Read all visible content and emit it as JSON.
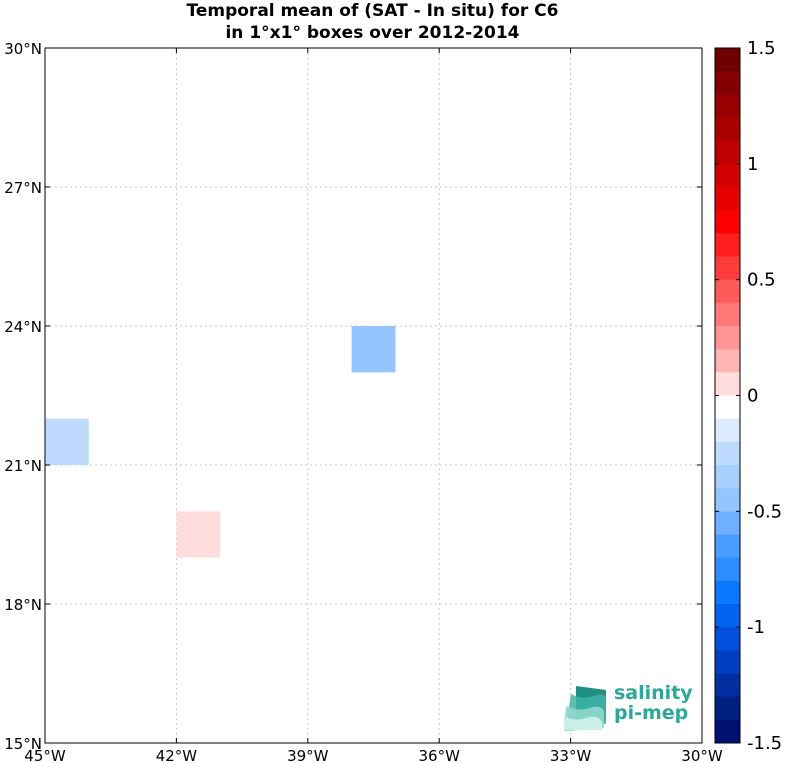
{
  "title": {
    "line1": "Temporal mean of (SAT - In situ) for C6",
    "line2": "in 1°x1° boxes over 2012-2014"
  },
  "chart_data": {
    "type": "heatmap",
    "projection": "lon-lat",
    "xlim": [
      -45,
      -30
    ],
    "ylim": [
      15,
      30
    ],
    "grid": true,
    "x_ticks": [
      {
        "value": -45,
        "label": "45°W"
      },
      {
        "value": -42,
        "label": "42°W"
      },
      {
        "value": -39,
        "label": "39°W"
      },
      {
        "value": -36,
        "label": "36°W"
      },
      {
        "value": -33,
        "label": "33°W"
      },
      {
        "value": -30,
        "label": "30°W"
      }
    ],
    "y_ticks": [
      {
        "value": 15,
        "label": "15°N"
      },
      {
        "value": 18,
        "label": "18°N"
      },
      {
        "value": 21,
        "label": "21°N"
      },
      {
        "value": 24,
        "label": "24°N"
      },
      {
        "value": 27,
        "label": "27°N"
      },
      {
        "value": 30,
        "label": "30°N"
      }
    ],
    "cells": [
      {
        "lon": [
          -38,
          -37
        ],
        "lat": [
          23,
          24
        ],
        "value": -0.4,
        "color": "#94c5ff"
      },
      {
        "lon": [
          -45,
          -44
        ],
        "lat": [
          21,
          22
        ],
        "value": -0.25,
        "color": "#bedbff"
      },
      {
        "lon": [
          -42,
          -41
        ],
        "lat": [
          19,
          20
        ],
        "value": 0.1,
        "color": "#ffdcdc"
      }
    ],
    "colorbar": {
      "min": -1.5,
      "max": 1.5,
      "levels": 30,
      "ticks": [
        {
          "value": 1.5,
          "label": "1.5"
        },
        {
          "value": 1,
          "label": "1"
        },
        {
          "value": 0.5,
          "label": "0.5"
        },
        {
          "value": 0,
          "label": "0"
        },
        {
          "value": -0.5,
          "label": "-0.5"
        },
        {
          "value": -1,
          "label": "-1"
        },
        {
          "value": -1.5,
          "label": "-1.5"
        }
      ],
      "colors_top_to_bottom": [
        "#6e0000",
        "#820000",
        "#960000",
        "#aa0000",
        "#be0000",
        "#d20000",
        "#e60000",
        "#fa0000",
        "#ff1e1e",
        "#ff3c3c",
        "#ff5a5a",
        "#ff7878",
        "#ff9696",
        "#ffb4b4",
        "#ffdcdc",
        "#ffffff",
        "#dcebff",
        "#bedbff",
        "#a8d0ff",
        "#94c5ff",
        "#6eb0ff",
        "#4a9cff",
        "#2d8cff",
        "#0a78ff",
        "#0064f0",
        "#0050dc",
        "#0040c0",
        "#0030a0",
        "#002080",
        "#001070"
      ]
    }
  },
  "logo": {
    "line1": "salinity",
    "line2": "pi-mep",
    "color": "#2aa89a"
  }
}
